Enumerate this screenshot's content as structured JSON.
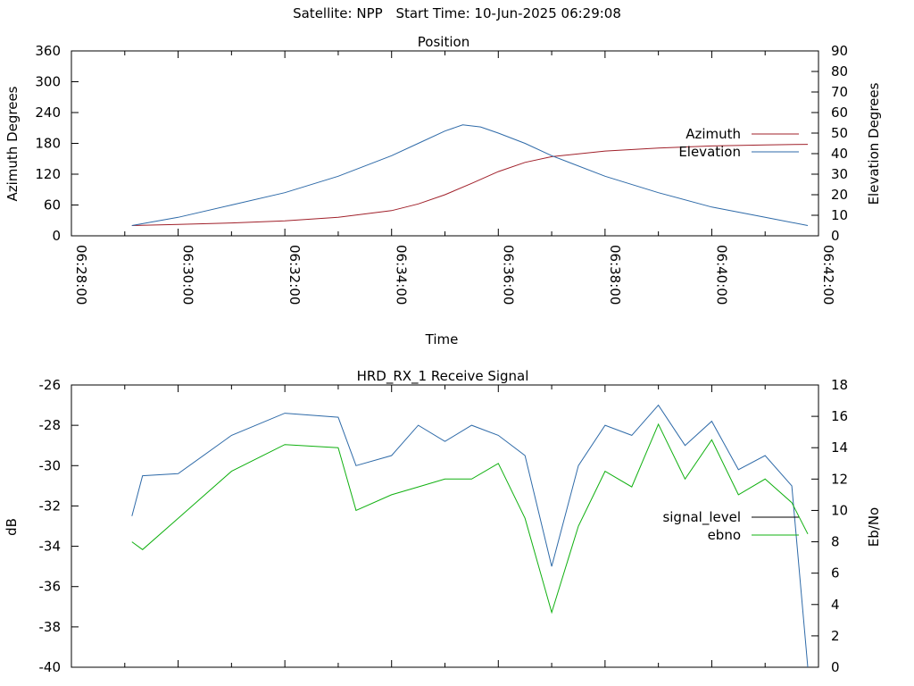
{
  "header": {
    "satellite": "Satellite: NPP",
    "start_time": "Start Time: 10-Jun-2025 06:29:08"
  },
  "colors": {
    "azimuth": "#a0202a",
    "elevation": "#2e6aa8",
    "signal_level": "#2e6aa8",
    "ebno": "#10b010",
    "legend_signal_level_sample": "#000000"
  },
  "chart_data": [
    {
      "type": "line",
      "title": "Position",
      "xlabel": "Time",
      "ylabel": "Azimuth Degrees",
      "y2label": "Elevation Degrees",
      "xlim": [
        "06:28:00",
        "06:42:00"
      ],
      "ylim": [
        0,
        360
      ],
      "y2lim": [
        0,
        90
      ],
      "x_ticks": [
        "06:28:00",
        "06:30:00",
        "06:32:00",
        "06:34:00",
        "06:36:00",
        "06:38:00",
        "06:40:00",
        "06:42:00"
      ],
      "y_ticks": [
        "0",
        "60",
        "120",
        "180",
        "240",
        "300",
        "360"
      ],
      "y2_ticks": [
        "0",
        "10",
        "20",
        "30",
        "40",
        "50",
        "60",
        "70",
        "80",
        "90"
      ],
      "legend": "right",
      "series": [
        {
          "name": "Azimuth",
          "axis": "y",
          "x": [
            "06:29:08",
            "06:30:00",
            "06:31:00",
            "06:32:00",
            "06:33:00",
            "06:34:00",
            "06:34:30",
            "06:35:00",
            "06:35:30",
            "06:36:00",
            "06:36:30",
            "06:37:00",
            "06:38:00",
            "06:39:00",
            "06:40:00",
            "06:41:00",
            "06:41:48"
          ],
          "values": [
            20,
            22,
            25,
            29,
            36,
            49,
            62,
            80,
            102,
            125,
            143,
            154,
            165,
            171,
            175,
            177,
            178
          ]
        },
        {
          "name": "Elevation",
          "axis": "y2",
          "x": [
            "06:29:08",
            "06:30:00",
            "06:31:00",
            "06:32:00",
            "06:33:00",
            "06:34:00",
            "06:34:30",
            "06:35:00",
            "06:35:20",
            "06:35:40",
            "06:36:00",
            "06:36:30",
            "06:37:00",
            "06:38:00",
            "06:39:00",
            "06:40:00",
            "06:41:00",
            "06:41:48"
          ],
          "values": [
            5,
            9,
            15,
            21,
            29,
            39,
            45,
            51,
            54,
            53,
            50,
            45,
            39,
            29,
            21,
            14,
            9,
            5
          ]
        }
      ]
    },
    {
      "type": "line",
      "title": "HRD_RX_1 Receive Signal",
      "ylabel": "dB",
      "y2label": "Eb/No",
      "xlim": [
        "06:28:00",
        "06:42:00"
      ],
      "ylim": [
        -40,
        -26
      ],
      "y2lim": [
        0,
        18
      ],
      "y_ticks": [
        "-26",
        "-28",
        "-30",
        "-32",
        "-34",
        "-36",
        "-38",
        "-40"
      ],
      "y2_ticks": [
        "0",
        "2",
        "4",
        "6",
        "8",
        "10",
        "12",
        "14",
        "16",
        "18"
      ],
      "legend": "right",
      "series": [
        {
          "name": "signal_level",
          "axis": "y",
          "x": [
            "06:29:08",
            "06:29:20",
            "06:30:00",
            "06:31:00",
            "06:32:00",
            "06:33:00",
            "06:33:20",
            "06:34:00",
            "06:34:30",
            "06:35:00",
            "06:35:30",
            "06:36:00",
            "06:36:30",
            "06:37:00",
            "06:37:30",
            "06:38:00",
            "06:38:30",
            "06:39:00",
            "06:39:30",
            "06:40:00",
            "06:40:30",
            "06:41:00",
            "06:41:30",
            "06:41:48"
          ],
          "values": [
            -32.5,
            -30.5,
            -30.4,
            -28.5,
            -27.4,
            -27.6,
            -30.0,
            -29.5,
            -28.0,
            -28.8,
            -28.0,
            -28.5,
            -29.5,
            -35.0,
            -30.0,
            -28.0,
            -28.5,
            -27.0,
            -29.0,
            -27.8,
            -30.2,
            -29.5,
            -31.0,
            -40.0
          ]
        },
        {
          "name": "ebno",
          "axis": "y2",
          "x": [
            "06:29:08",
            "06:29:20",
            "06:30:00",
            "06:31:00",
            "06:32:00",
            "06:33:00",
            "06:33:20",
            "06:34:00",
            "06:34:30",
            "06:35:00",
            "06:35:30",
            "06:36:00",
            "06:36:30",
            "06:37:00",
            "06:37:30",
            "06:38:00",
            "06:38:30",
            "06:39:00",
            "06:39:30",
            "06:40:00",
            "06:40:30",
            "06:41:00",
            "06:41:30",
            "06:41:48"
          ],
          "values": [
            8.0,
            7.5,
            9.5,
            12.5,
            14.2,
            14.0,
            10.0,
            11.0,
            11.5,
            12.0,
            12.0,
            13.0,
            9.5,
            3.5,
            9.0,
            12.5,
            11.5,
            15.5,
            12.0,
            14.5,
            11.0,
            12.0,
            10.5,
            8.5
          ]
        }
      ]
    }
  ]
}
